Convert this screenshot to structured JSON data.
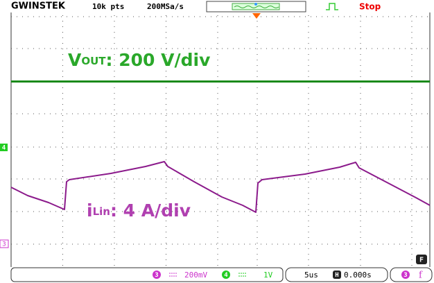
{
  "header": {
    "brand": "GWINSTEK",
    "record": "10k pts",
    "rate": "200MSa/s",
    "status": "Stop"
  },
  "labels": {
    "vout": {
      "symbol": "V",
      "sub": "OUT",
      "scale": ": 200 V/div"
    },
    "ilin": {
      "symbol": "i",
      "sub": "Lin",
      "scale": ": 4 A/div"
    }
  },
  "markers": {
    "ch4": "4",
    "ch3": "3",
    "f": "F"
  },
  "footer": {
    "ch3": "3",
    "ch3_scale": "200mV",
    "ch4": "4",
    "ch4_scale": "1V",
    "timebase": "5us",
    "h": "H",
    "delay": "0.000s",
    "trig_ch": "3",
    "trig": "f"
  }
}
